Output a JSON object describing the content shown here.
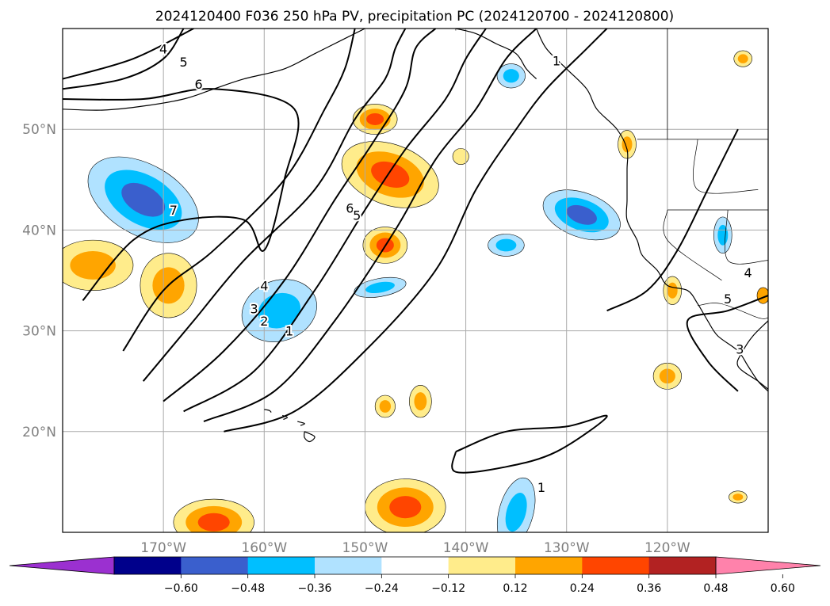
{
  "title": "2024120400 F036 250 hPa PV, precipitation PC (2024120700 - 2024120800)",
  "map": {
    "projection": "plate-carree",
    "lon_range": [
      -180,
      -110
    ],
    "lat_range": [
      10,
      60
    ],
    "grid": true,
    "lat_labels": [
      {
        "lat": 50,
        "text": "50°N"
      },
      {
        "lat": 40,
        "text": "40°N"
      },
      {
        "lat": 30,
        "text": "30°N"
      },
      {
        "lat": 20,
        "text": "20°N"
      }
    ],
    "lon_labels": [
      {
        "lon": -170,
        "text": "170°W"
      },
      {
        "lon": -160,
        "text": "160°W"
      },
      {
        "lon": -150,
        "text": "150°W"
      },
      {
        "lon": -140,
        "text": "140°W"
      },
      {
        "lon": -130,
        "text": "130°W"
      },
      {
        "lon": -120,
        "text": "120°W"
      }
    ]
  },
  "colorbar": {
    "extend": "both",
    "bins": [
      {
        "color": "#9b30d0"
      },
      {
        "color": "#00008b"
      },
      {
        "color": "#3a5fcd"
      },
      {
        "color": "#00bfff"
      },
      {
        "color": "#b0e2ff"
      },
      {
        "color": "#ffffff"
      },
      {
        "color": "#ffec8b"
      },
      {
        "color": "#ffa500"
      },
      {
        "color": "#ff4500"
      },
      {
        "color": "#b22222"
      },
      {
        "color": "#ff82ab"
      }
    ],
    "labels": [
      "−0.60",
      "−0.48",
      "−0.36",
      "−0.24",
      "−0.12",
      "0.12",
      "0.24",
      "0.36",
      "0.48",
      "0.60"
    ]
  },
  "precip_blobs": [
    {
      "lon": -172,
      "lat": 43,
      "rx": 6,
      "ry": 3.5,
      "levels": [
        "#b0e2ff",
        "#00bfff",
        "#3a5fcd"
      ],
      "angle": 30
    },
    {
      "lon": -177,
      "lat": 36.5,
      "rx": 4,
      "ry": 2.5,
      "levels": [
        "#ffec8b",
        "#ffa500"
      ],
      "angle": 0
    },
    {
      "lon": -169.5,
      "lat": 34.5,
      "rx": 2.8,
      "ry": 3.2,
      "levels": [
        "#ffec8b",
        "#ffa500"
      ],
      "angle": 0
    },
    {
      "lon": -158.5,
      "lat": 32,
      "rx": 3.8,
      "ry": 3,
      "levels": [
        "#b0e2ff",
        "#00bfff"
      ],
      "angle": -20
    },
    {
      "lon": -147.5,
      "lat": 45.5,
      "rx": 5,
      "ry": 3,
      "levels": [
        "#ffec8b",
        "#ffa500",
        "#ff4500"
      ],
      "angle": 20
    },
    {
      "lon": -149,
      "lat": 51,
      "rx": 2.2,
      "ry": 1.5,
      "levels": [
        "#ffec8b",
        "#ffa500",
        "#ff4500"
      ],
      "angle": 0
    },
    {
      "lon": -148,
      "lat": 38.5,
      "rx": 2.2,
      "ry": 1.8,
      "levels": [
        "#ffec8b",
        "#ffa500",
        "#ff4500"
      ],
      "angle": 0
    },
    {
      "lon": -148.5,
      "lat": 34.3,
      "rx": 2.6,
      "ry": 0.9,
      "levels": [
        "#b0e2ff",
        "#00bfff"
      ],
      "angle": -10
    },
    {
      "lon": -140.5,
      "lat": 47.3,
      "rx": 0.8,
      "ry": 0.8,
      "levels": [
        "#ffec8b"
      ],
      "angle": 0
    },
    {
      "lon": -128.5,
      "lat": 41.5,
      "rx": 4,
      "ry": 2.2,
      "levels": [
        "#b0e2ff",
        "#00bfff",
        "#3a5fcd"
      ],
      "angle": 20
    },
    {
      "lon": -136,
      "lat": 38.5,
      "rx": 1.8,
      "ry": 1.1,
      "levels": [
        "#b0e2ff",
        "#00bfff"
      ],
      "angle": 0
    },
    {
      "lon": -135.5,
      "lat": 55.3,
      "rx": 1.4,
      "ry": 1.2,
      "levels": [
        "#b0e2ff",
        "#00bfff"
      ],
      "angle": 0
    },
    {
      "lon": -114.5,
      "lat": 39.5,
      "rx": 0.9,
      "ry": 1.8,
      "levels": [
        "#b0e2ff",
        "#00bfff"
      ],
      "angle": 0
    },
    {
      "lon": -124,
      "lat": 48.5,
      "rx": 0.9,
      "ry": 1.4,
      "levels": [
        "#ffec8b",
        "#ffa500"
      ],
      "angle": 0
    },
    {
      "lon": -119.5,
      "lat": 34,
      "rx": 0.9,
      "ry": 1.4,
      "levels": [
        "#ffec8b",
        "#ffa500"
      ],
      "angle": 0
    },
    {
      "lon": -112.5,
      "lat": 57,
      "rx": 0.9,
      "ry": 0.8,
      "levels": [
        "#ffec8b",
        "#ffa500"
      ],
      "angle": 0
    },
    {
      "lon": -110.5,
      "lat": 33.5,
      "rx": 0.6,
      "ry": 0.8,
      "levels": [
        "#ffa500"
      ],
      "angle": 0
    },
    {
      "lon": -120,
      "lat": 25.5,
      "rx": 1.4,
      "ry": 1.3,
      "levels": [
        "#ffec8b",
        "#ffa500"
      ],
      "angle": 0
    },
    {
      "lon": -144.5,
      "lat": 23,
      "rx": 1.1,
      "ry": 1.6,
      "levels": [
        "#ffec8b",
        "#ffa500"
      ],
      "angle": 0
    },
    {
      "lon": -148,
      "lat": 22.5,
      "rx": 1,
      "ry": 1.1,
      "levels": [
        "#ffec8b",
        "#ffa500"
      ],
      "angle": 0
    },
    {
      "lon": -113,
      "lat": 13.5,
      "rx": 0.9,
      "ry": 0.6,
      "levels": [
        "#ffec8b",
        "#ffa500"
      ],
      "angle": 0
    },
    {
      "lon": -165,
      "lat": 11,
      "rx": 4,
      "ry": 2.3,
      "levels": [
        "#ffec8b",
        "#ffa500",
        "#ff4500"
      ],
      "angle": 0
    },
    {
      "lon": -146,
      "lat": 12.5,
      "rx": 4,
      "ry": 2.8,
      "levels": [
        "#ffec8b",
        "#ffa500",
        "#ff4500"
      ],
      "angle": 0
    },
    {
      "lon": -135,
      "lat": 12,
      "rx": 1.7,
      "ry": 3.5,
      "levels": [
        "#b0e2ff",
        "#00bfff"
      ],
      "angle": 15
    }
  ],
  "pv_contours": [
    {
      "level": "1",
      "points": [
        [
          -164,
          20
        ],
        [
          -157,
          22
        ],
        [
          -150,
          28
        ],
        [
          -143,
          36
        ],
        [
          -139,
          44
        ],
        [
          -135,
          50
        ],
        [
          -132,
          54
        ],
        [
          -128,
          58
        ],
        [
          -126,
          60
        ]
      ]
    },
    {
      "level": "2",
      "points": [
        [
          -166,
          21
        ],
        [
          -159,
          24
        ],
        [
          -153,
          31
        ],
        [
          -147,
          40
        ],
        [
          -143,
          47
        ],
        [
          -139,
          52
        ],
        [
          -136,
          57
        ],
        [
          -133,
          60
        ]
      ]
    },
    {
      "level": "3",
      "points": [
        [
          -168,
          22
        ],
        [
          -161,
          26
        ],
        [
          -155,
          34
        ],
        [
          -150,
          42
        ],
        [
          -146,
          48
        ],
        [
          -142,
          53
        ],
        [
          -140,
          57
        ],
        [
          -138,
          60
        ]
      ]
    },
    {
      "level": "4",
      "points": [
        [
          -170,
          23
        ],
        [
          -164,
          28
        ],
        [
          -158,
          35
        ],
        [
          -153,
          43
        ],
        [
          -149,
          49
        ],
        [
          -146,
          54
        ],
        [
          -145,
          58
        ],
        [
          -143,
          60
        ]
      ]
    },
    {
      "level": "5",
      "points": [
        [
          -172,
          25
        ],
        [
          -167,
          31
        ],
        [
          -162,
          37
        ],
        [
          -155,
          44
        ],
        [
          -151,
          51
        ],
        [
          -148,
          55
        ],
        [
          -147,
          58
        ],
        [
          -146,
          60
        ]
      ]
    },
    {
      "level": "6",
      "points": [
        [
          -174,
          28
        ],
        [
          -170,
          34
        ],
        [
          -165,
          38
        ],
        [
          -158,
          45
        ],
        [
          -154,
          52
        ],
        [
          -152,
          56
        ],
        [
          -151,
          60
        ]
      ]
    },
    {
      "level": "7",
      "points": [
        [
          -178,
          33
        ],
        [
          -173,
          39
        ],
        [
          -168,
          41
        ],
        [
          -162,
          41
        ],
        [
          -160,
          38
        ],
        [
          -158,
          45
        ],
        [
          -157,
          52
        ],
        [
          -165,
          54
        ],
        [
          -172,
          53
        ],
        [
          -180,
          53
        ]
      ]
    },
    {
      "level": "4",
      "points": [
        [
          -180,
          55
        ],
        [
          -173,
          57
        ],
        [
          -167,
          60
        ]
      ]
    },
    {
      "level": "5",
      "points": [
        [
          -180,
          54
        ],
        [
          -174,
          55
        ],
        [
          -170,
          57
        ],
        [
          -168,
          60
        ]
      ]
    },
    {
      "level": "1",
      "points": [
        [
          -141,
          18
        ],
        [
          -136,
          20
        ],
        [
          -130,
          20.5
        ],
        [
          -126,
          21.5
        ],
        [
          -131,
          18
        ],
        [
          -136,
          16.5
        ],
        [
          -141,
          16
        ],
        [
          -141,
          18
        ]
      ]
    },
    {
      "level": "1",
      "points": [
        [
          -126,
          32
        ],
        [
          -122,
          34
        ],
        [
          -119,
          38
        ],
        [
          -116,
          44
        ],
        [
          -113,
          50
        ]
      ]
    },
    {
      "level": "5",
      "points": [
        [
          -110,
          33.5
        ],
        [
          -114,
          32
        ],
        [
          -118,
          31
        ],
        [
          -116,
          27
        ],
        [
          -113,
          24
        ]
      ]
    }
  ],
  "contour_labels": [
    {
      "lon": -170,
      "lat": 58,
      "text": "4"
    },
    {
      "lon": -168,
      "lat": 56.7,
      "text": "5"
    },
    {
      "lon": -166.5,
      "lat": 54.5,
      "text": "6"
    },
    {
      "lon": -169,
      "lat": 42,
      "text": "7"
    },
    {
      "lon": -151.5,
      "lat": 42.2,
      "text": "6"
    },
    {
      "lon": -150.8,
      "lat": 41.5,
      "text": "5"
    },
    {
      "lon": -160,
      "lat": 34.5,
      "text": "4"
    },
    {
      "lon": -161,
      "lat": 32.2,
      "text": "3"
    },
    {
      "lon": -160,
      "lat": 31,
      "text": "2"
    },
    {
      "lon": -157.5,
      "lat": 30,
      "text": "1"
    },
    {
      "lon": -131,
      "lat": 56.8,
      "text": "1"
    },
    {
      "lon": -132.5,
      "lat": 14.5,
      "text": "1"
    },
    {
      "lon": -114,
      "lat": 33.2,
      "text": "5"
    },
    {
      "lon": -112.8,
      "lat": 28.2,
      "text": "3"
    },
    {
      "lon": -112,
      "lat": 35.8,
      "text": "4"
    }
  ],
  "coastlines": [
    {
      "points": [
        [
          -133,
          60
        ],
        [
          -132,
          58
        ],
        [
          -130,
          56
        ],
        [
          -128,
          54
        ],
        [
          -127,
          52
        ],
        [
          -125,
          50
        ],
        [
          -124,
          48
        ],
        [
          -124,
          46
        ],
        [
          -124,
          43
        ],
        [
          -124,
          41
        ],
        [
          -123,
          39
        ],
        [
          -122.5,
          37.5
        ],
        [
          -121,
          36
        ],
        [
          -120,
          34.5
        ],
        [
          -118,
          34
        ],
        [
          -117,
          32.7
        ],
        [
          -116,
          31
        ],
        [
          -115,
          29.5
        ],
        [
          -113,
          28
        ],
        [
          -112,
          26.5
        ],
        [
          -111,
          25
        ],
        [
          -110,
          24
        ]
      ]
    },
    {
      "points": [
        [
          -110,
          31
        ],
        [
          -111.5,
          29.5
        ],
        [
          -112.5,
          28
        ],
        [
          -113,
          26.5
        ],
        [
          -111,
          25
        ],
        [
          -110,
          24.2
        ]
      ]
    },
    {
      "points": [
        [
          -160,
          22.2
        ],
        [
          -159.5,
          22.1
        ],
        [
          -159.3,
          21.9
        ]
      ]
    },
    {
      "points": [
        [
          -158.2,
          21.6
        ],
        [
          -157.7,
          21.4
        ],
        [
          -158.1,
          21.2
        ]
      ]
    },
    {
      "points": [
        [
          -156.7,
          21
        ],
        [
          -156,
          20.8
        ],
        [
          -156.4,
          20.6
        ]
      ]
    },
    {
      "points": [
        [
          -156,
          20
        ],
        [
          -155,
          19.5
        ],
        [
          -155.5,
          19
        ],
        [
          -156,
          19.4
        ],
        [
          -156,
          20
        ]
      ]
    },
    {
      "points": [
        [
          -180,
          52
        ],
        [
          -176,
          51.9
        ],
        [
          -172,
          52.3
        ],
        [
          -168,
          53
        ],
        [
          -165,
          54
        ],
        [
          -162,
          55
        ],
        [
          -158,
          56
        ],
        [
          -155,
          57.5
        ],
        [
          -152,
          59
        ],
        [
          -150,
          60
        ]
      ]
    },
    {
      "points": [
        [
          -141,
          60
        ],
        [
          -139,
          59.5
        ],
        [
          -137,
          58.5
        ],
        [
          -135,
          57.5
        ],
        [
          -134,
          56
        ],
        [
          -133,
          55
        ]
      ]
    }
  ],
  "borders": [
    {
      "points": [
        [
          -123,
          49
        ],
        [
          -110,
          49
        ]
      ]
    },
    {
      "points": [
        [
          -117,
          32.5
        ],
        [
          -114.7,
          32.7
        ],
        [
          -111,
          31.3
        ],
        [
          -110,
          31.3
        ]
      ]
    },
    {
      "points": [
        [
          -120,
          42
        ],
        [
          -110,
          42
        ]
      ]
    },
    {
      "points": [
        [
          -120,
          42
        ],
        [
          -120,
          39
        ],
        [
          -114.6,
          35
        ]
      ]
    },
    {
      "points": [
        [
          -117,
          49
        ],
        [
          -117,
          44
        ],
        [
          -111,
          44
        ]
      ]
    },
    {
      "points": [
        [
          -114,
          42
        ],
        [
          -114,
          37
        ],
        [
          -110,
          37
        ]
      ]
    },
    {
      "points": [
        [
          -141,
          60
        ],
        [
          -141,
          59.8
        ]
      ]
    },
    {
      "points": [
        [
          -120,
          60
        ],
        [
          -120,
          49
        ]
      ]
    }
  ]
}
